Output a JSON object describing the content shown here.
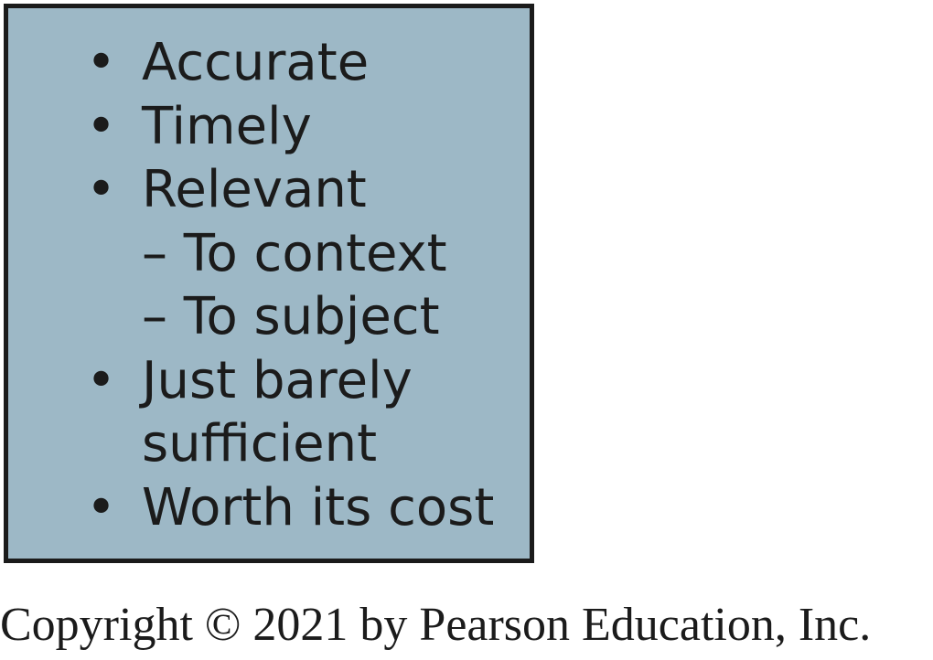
{
  "panel": {
    "background": "#9db8c6",
    "border": "#1b1b1b",
    "bullet_glyph": "•",
    "items": [
      {
        "label": "Accurate"
      },
      {
        "label": "Timely"
      },
      {
        "label": "Relevant",
        "subitems": [
          "– To context",
          "– To subject"
        ]
      },
      {
        "label": "Just barely",
        "continuation": "sufficient"
      },
      {
        "label": "Worth its cost"
      }
    ]
  },
  "footer": {
    "copyright": "Copyright © 2021 by Pearson Education, Inc."
  }
}
